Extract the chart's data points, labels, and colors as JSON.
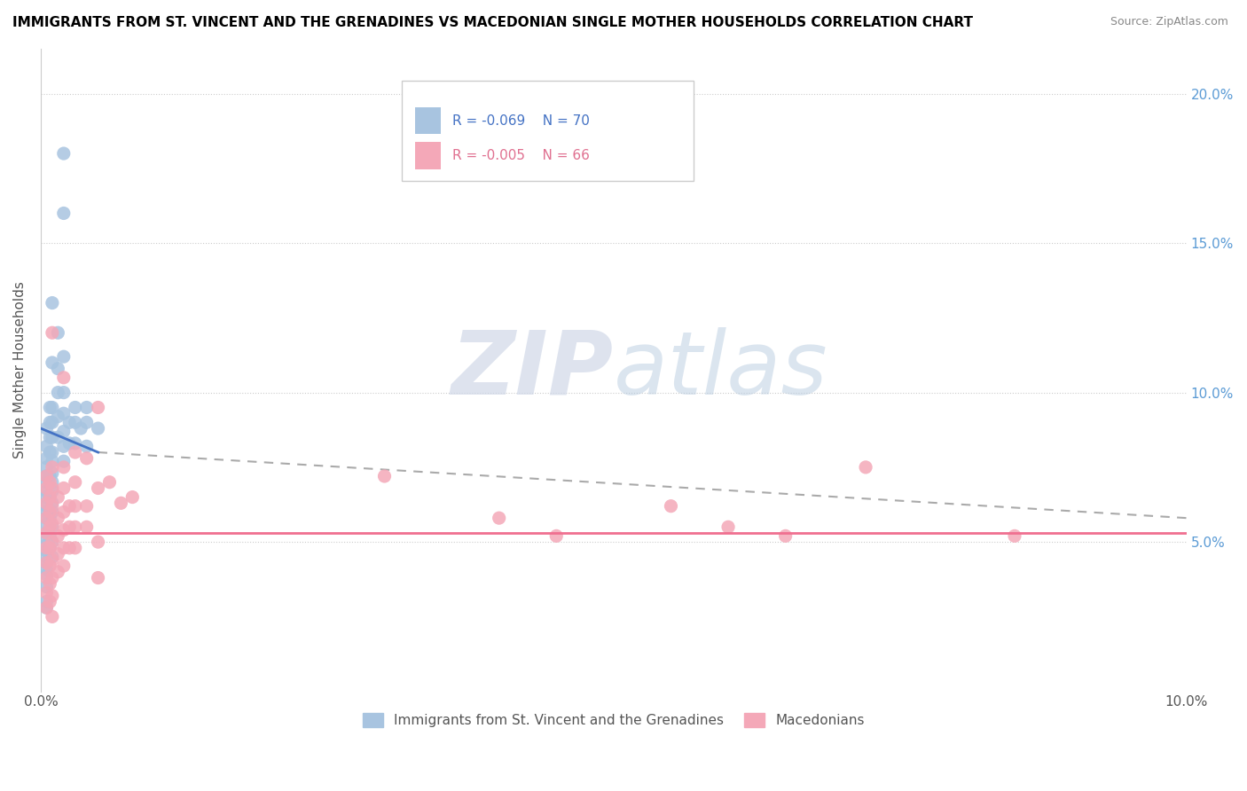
{
  "title": "IMMIGRANTS FROM ST. VINCENT AND THE GRENADINES VS MACEDONIAN SINGLE MOTHER HOUSEHOLDS CORRELATION CHART",
  "source": "Source: ZipAtlas.com",
  "ylabel": "Single Mother Households",
  "y_ticks": [
    "5.0%",
    "10.0%",
    "15.0%",
    "20.0%"
  ],
  "y_tick_values": [
    0.05,
    0.1,
    0.15,
    0.2
  ],
  "x_lim": [
    0.0,
    0.1
  ],
  "y_lim": [
    0.0,
    0.215
  ],
  "watermark_zip": "ZIP",
  "watermark_atlas": "atlas",
  "legend_blue_label": "Immigrants from St. Vincent and the Grenadines",
  "legend_pink_label": "Macedonians",
  "blue_color": "#a8c4e0",
  "pink_color": "#f4a8b8",
  "blue_line_color": "#4472c4",
  "pink_line_color": "#f07090",
  "dash_line_color": "#aaaaaa",
  "blue_scatter": [
    [
      0.0005,
      0.088
    ],
    [
      0.0005,
      0.082
    ],
    [
      0.0005,
      0.078
    ],
    [
      0.0005,
      0.075
    ],
    [
      0.0005,
      0.072
    ],
    [
      0.0005,
      0.07
    ],
    [
      0.0005,
      0.067
    ],
    [
      0.0005,
      0.065
    ],
    [
      0.0005,
      0.062
    ],
    [
      0.0005,
      0.06
    ],
    [
      0.0005,
      0.058
    ],
    [
      0.0005,
      0.056
    ],
    [
      0.0005,
      0.053
    ],
    [
      0.0005,
      0.051
    ],
    [
      0.0005,
      0.049
    ],
    [
      0.0005,
      0.047
    ],
    [
      0.0005,
      0.045
    ],
    [
      0.0005,
      0.043
    ],
    [
      0.0005,
      0.041
    ],
    [
      0.0005,
      0.039
    ],
    [
      0.0005,
      0.03
    ],
    [
      0.0008,
      0.095
    ],
    [
      0.0008,
      0.09
    ],
    [
      0.0008,
      0.085
    ],
    [
      0.0008,
      0.08
    ],
    [
      0.0008,
      0.072
    ],
    [
      0.0008,
      0.065
    ],
    [
      0.0008,
      0.058
    ],
    [
      0.0008,
      0.052
    ],
    [
      0.0008,
      0.048
    ],
    [
      0.001,
      0.13
    ],
    [
      0.001,
      0.11
    ],
    [
      0.001,
      0.095
    ],
    [
      0.001,
      0.09
    ],
    [
      0.001,
      0.085
    ],
    [
      0.001,
      0.08
    ],
    [
      0.001,
      0.077
    ],
    [
      0.001,
      0.073
    ],
    [
      0.001,
      0.07
    ],
    [
      0.001,
      0.067
    ],
    [
      0.001,
      0.063
    ],
    [
      0.001,
      0.06
    ],
    [
      0.001,
      0.055
    ],
    [
      0.001,
      0.05
    ],
    [
      0.001,
      0.045
    ],
    [
      0.0015,
      0.12
    ],
    [
      0.0015,
      0.108
    ],
    [
      0.0015,
      0.1
    ],
    [
      0.0015,
      0.092
    ],
    [
      0.0015,
      0.085
    ],
    [
      0.002,
      0.18
    ],
    [
      0.002,
      0.16
    ],
    [
      0.002,
      0.112
    ],
    [
      0.002,
      0.1
    ],
    [
      0.002,
      0.093
    ],
    [
      0.002,
      0.087
    ],
    [
      0.002,
      0.082
    ],
    [
      0.002,
      0.077
    ],
    [
      0.0025,
      0.09
    ],
    [
      0.0025,
      0.083
    ],
    [
      0.003,
      0.095
    ],
    [
      0.003,
      0.09
    ],
    [
      0.003,
      0.083
    ],
    [
      0.0035,
      0.088
    ],
    [
      0.004,
      0.095
    ],
    [
      0.004,
      0.09
    ],
    [
      0.004,
      0.082
    ],
    [
      0.0005,
      0.028
    ],
    [
      0.0005,
      0.035
    ],
    [
      0.005,
      0.088
    ]
  ],
  "pink_scatter": [
    [
      0.0005,
      0.072
    ],
    [
      0.0005,
      0.068
    ],
    [
      0.0005,
      0.063
    ],
    [
      0.0005,
      0.058
    ],
    [
      0.0005,
      0.053
    ],
    [
      0.0005,
      0.048
    ],
    [
      0.0005,
      0.043
    ],
    [
      0.0005,
      0.038
    ],
    [
      0.0005,
      0.033
    ],
    [
      0.0005,
      0.028
    ],
    [
      0.0008,
      0.07
    ],
    [
      0.0008,
      0.065
    ],
    [
      0.0008,
      0.06
    ],
    [
      0.0008,
      0.055
    ],
    [
      0.0008,
      0.048
    ],
    [
      0.0008,
      0.042
    ],
    [
      0.0008,
      0.036
    ],
    [
      0.0008,
      0.03
    ],
    [
      0.001,
      0.12
    ],
    [
      0.001,
      0.075
    ],
    [
      0.001,
      0.068
    ],
    [
      0.001,
      0.062
    ],
    [
      0.001,
      0.056
    ],
    [
      0.001,
      0.05
    ],
    [
      0.001,
      0.044
    ],
    [
      0.001,
      0.038
    ],
    [
      0.001,
      0.032
    ],
    [
      0.001,
      0.025
    ],
    [
      0.0015,
      0.065
    ],
    [
      0.0015,
      0.058
    ],
    [
      0.0015,
      0.052
    ],
    [
      0.0015,
      0.046
    ],
    [
      0.0015,
      0.04
    ],
    [
      0.002,
      0.105
    ],
    [
      0.002,
      0.075
    ],
    [
      0.002,
      0.068
    ],
    [
      0.002,
      0.06
    ],
    [
      0.002,
      0.054
    ],
    [
      0.002,
      0.048
    ],
    [
      0.002,
      0.042
    ],
    [
      0.0025,
      0.062
    ],
    [
      0.0025,
      0.055
    ],
    [
      0.0025,
      0.048
    ],
    [
      0.003,
      0.08
    ],
    [
      0.003,
      0.07
    ],
    [
      0.003,
      0.062
    ],
    [
      0.003,
      0.055
    ],
    [
      0.003,
      0.048
    ],
    [
      0.004,
      0.078
    ],
    [
      0.004,
      0.062
    ],
    [
      0.004,
      0.055
    ],
    [
      0.005,
      0.095
    ],
    [
      0.005,
      0.068
    ],
    [
      0.005,
      0.05
    ],
    [
      0.005,
      0.038
    ],
    [
      0.006,
      0.07
    ],
    [
      0.007,
      0.063
    ],
    [
      0.008,
      0.065
    ],
    [
      0.03,
      0.072
    ],
    [
      0.04,
      0.058
    ],
    [
      0.045,
      0.052
    ],
    [
      0.055,
      0.062
    ],
    [
      0.06,
      0.055
    ],
    [
      0.065,
      0.052
    ],
    [
      0.072,
      0.075
    ],
    [
      0.085,
      0.052
    ]
  ],
  "blue_line_x0": 0.0,
  "blue_line_y0": 0.088,
  "blue_line_x1": 0.005,
  "blue_line_y1": 0.08,
  "dash_line_x0": 0.005,
  "dash_line_y0": 0.08,
  "dash_line_x1": 0.1,
  "dash_line_y1": 0.058,
  "pink_line_x0": 0.0,
  "pink_line_y0": 0.053,
  "pink_line_x1": 0.1,
  "pink_line_y1": 0.053
}
